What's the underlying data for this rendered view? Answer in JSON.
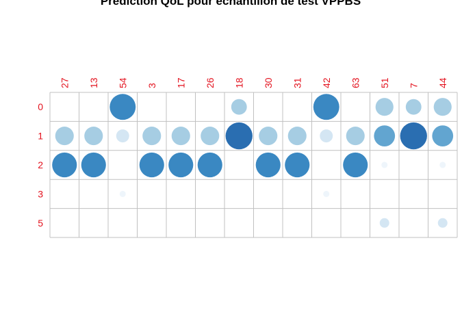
{
  "chart_data": {
    "type": "corrplot",
    "title": "Prédiction QoL pour échantillon de test VPPBS",
    "columns": [
      "27",
      "13",
      "54",
      "3",
      "17",
      "26",
      "18",
      "30",
      "31",
      "42",
      "63",
      "51",
      "7",
      "44"
    ],
    "rows": [
      "0",
      "1",
      "2",
      "3",
      "5"
    ],
    "values": [
      [
        0,
        0,
        0.88,
        0,
        0,
        0,
        0.32,
        0,
        0,
        0.88,
        0,
        0.42,
        0.32,
        0.42
      ],
      [
        0.45,
        0.45,
        0.22,
        0.45,
        0.45,
        0.45,
        0.95,
        0.45,
        0.45,
        0.22,
        0.45,
        0.58,
        0.95,
        0.58
      ],
      [
        0.8,
        0.8,
        0,
        0.8,
        0.8,
        0.8,
        0,
        0.8,
        0.8,
        0,
        0.8,
        0.05,
        0,
        0.05
      ],
      [
        0,
        0,
        0.05,
        0,
        0,
        0,
        0,
        0,
        0,
        0.05,
        0,
        0,
        0,
        0
      ],
      [
        0,
        0,
        0,
        0,
        0,
        0,
        0,
        0,
        0,
        0,
        0,
        0.12,
        0,
        0.12
      ]
    ],
    "label_color": "#e3121e",
    "grid_color": "#c0c0c0",
    "palette": [
      "#eef5fb",
      "#d4e6f3",
      "#a6cde3",
      "#62a5d0",
      "#3a88c2",
      "#2a6eb1"
    ],
    "grid": true,
    "legend": "none"
  }
}
